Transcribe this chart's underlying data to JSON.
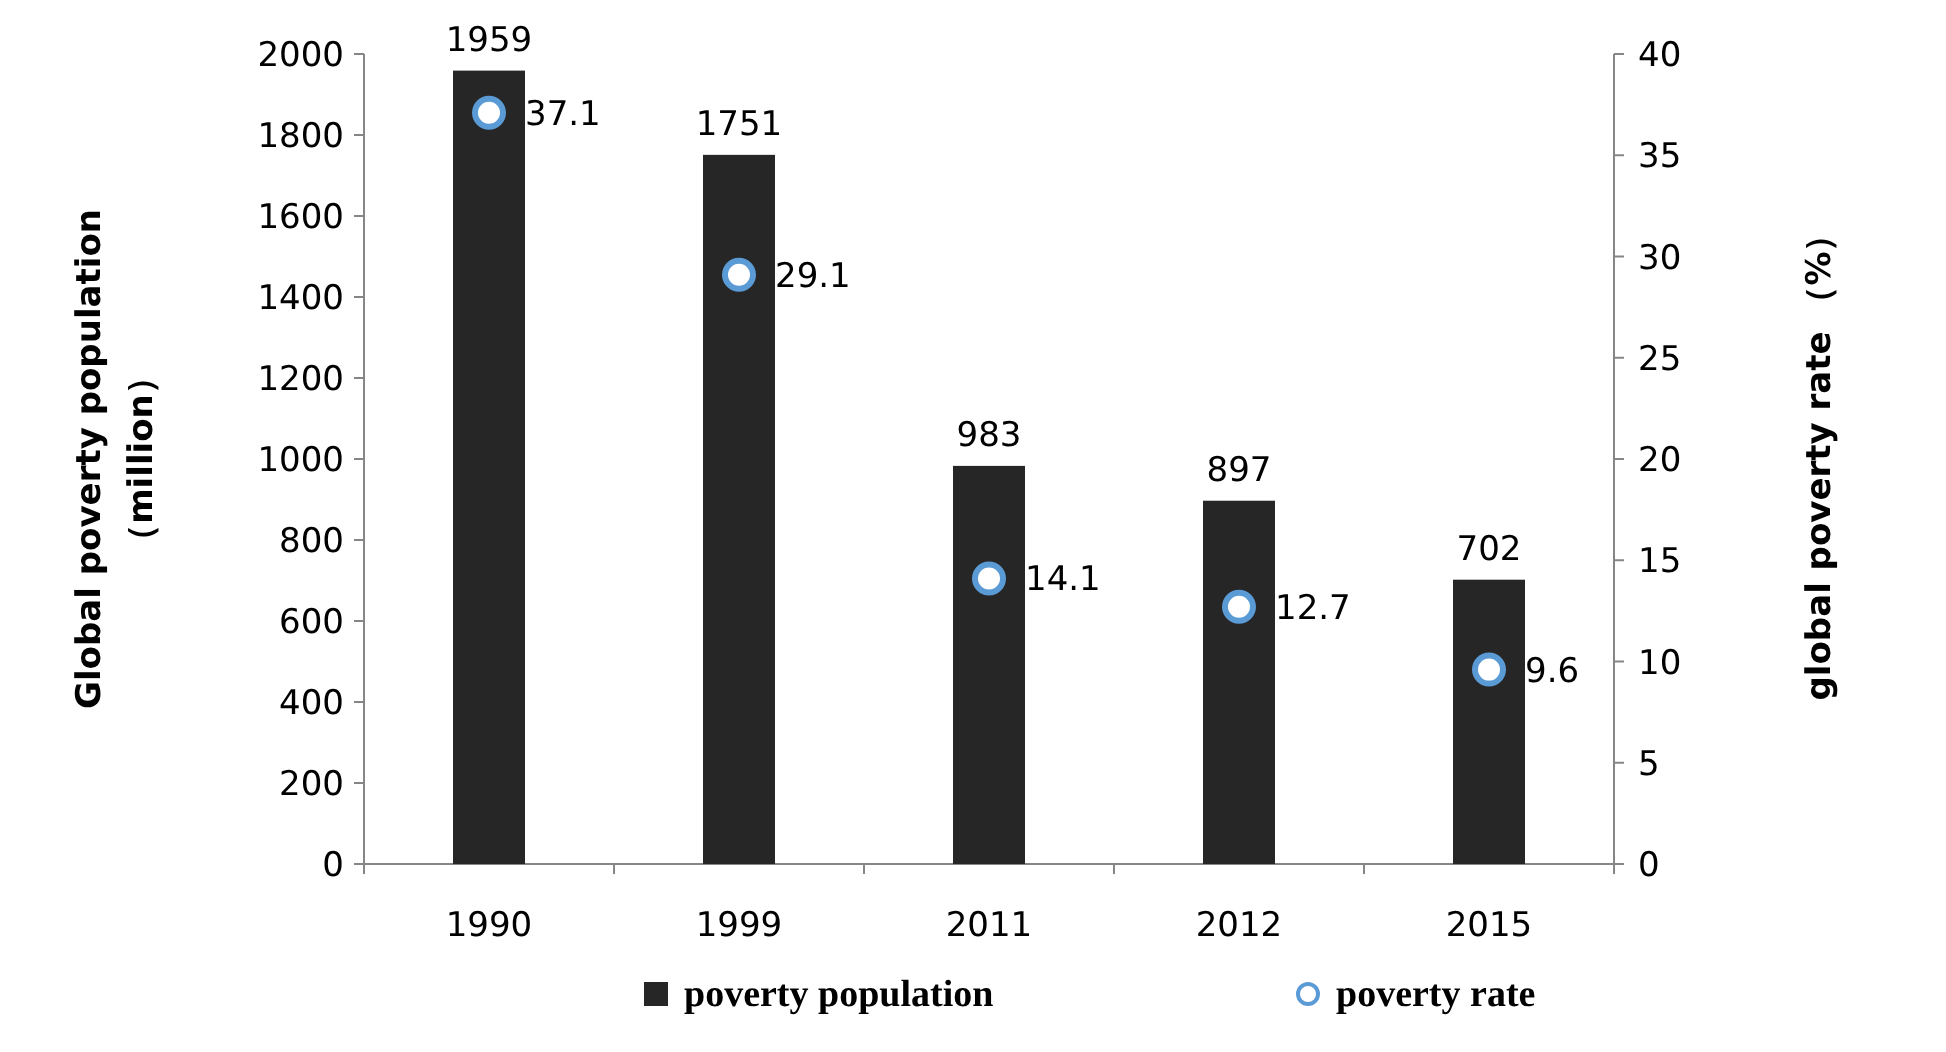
{
  "chart_data": {
    "type": "bar",
    "categories": [
      "1990",
      "1999",
      "2011",
      "2012",
      "2015"
    ],
    "ylabel": "Global poverty population\n（million）",
    "y2label": "global poverty rate （%）",
    "ylim": [
      0,
      2000
    ],
    "yticks": [
      0,
      200,
      400,
      600,
      800,
      1000,
      1200,
      1400,
      1600,
      1800,
      2000
    ],
    "y2lim": [
      0,
      40
    ],
    "y2ticks": [
      0,
      5,
      10,
      15,
      20,
      25,
      30,
      35,
      40
    ],
    "series": [
      {
        "name": "poverty population",
        "color": "#262626",
        "values": [
          1959,
          1751,
          983,
          897,
          702
        ]
      },
      {
        "name": "poverty rate",
        "type": "scatter",
        "axis": "y2",
        "marker": "circle",
        "color": "#5b9bd5",
        "values": [
          37.1,
          29.1,
          14.1,
          12.7,
          9.6
        ]
      }
    ],
    "data_labels": true,
    "legend": "bottom",
    "grid": false
  }
}
